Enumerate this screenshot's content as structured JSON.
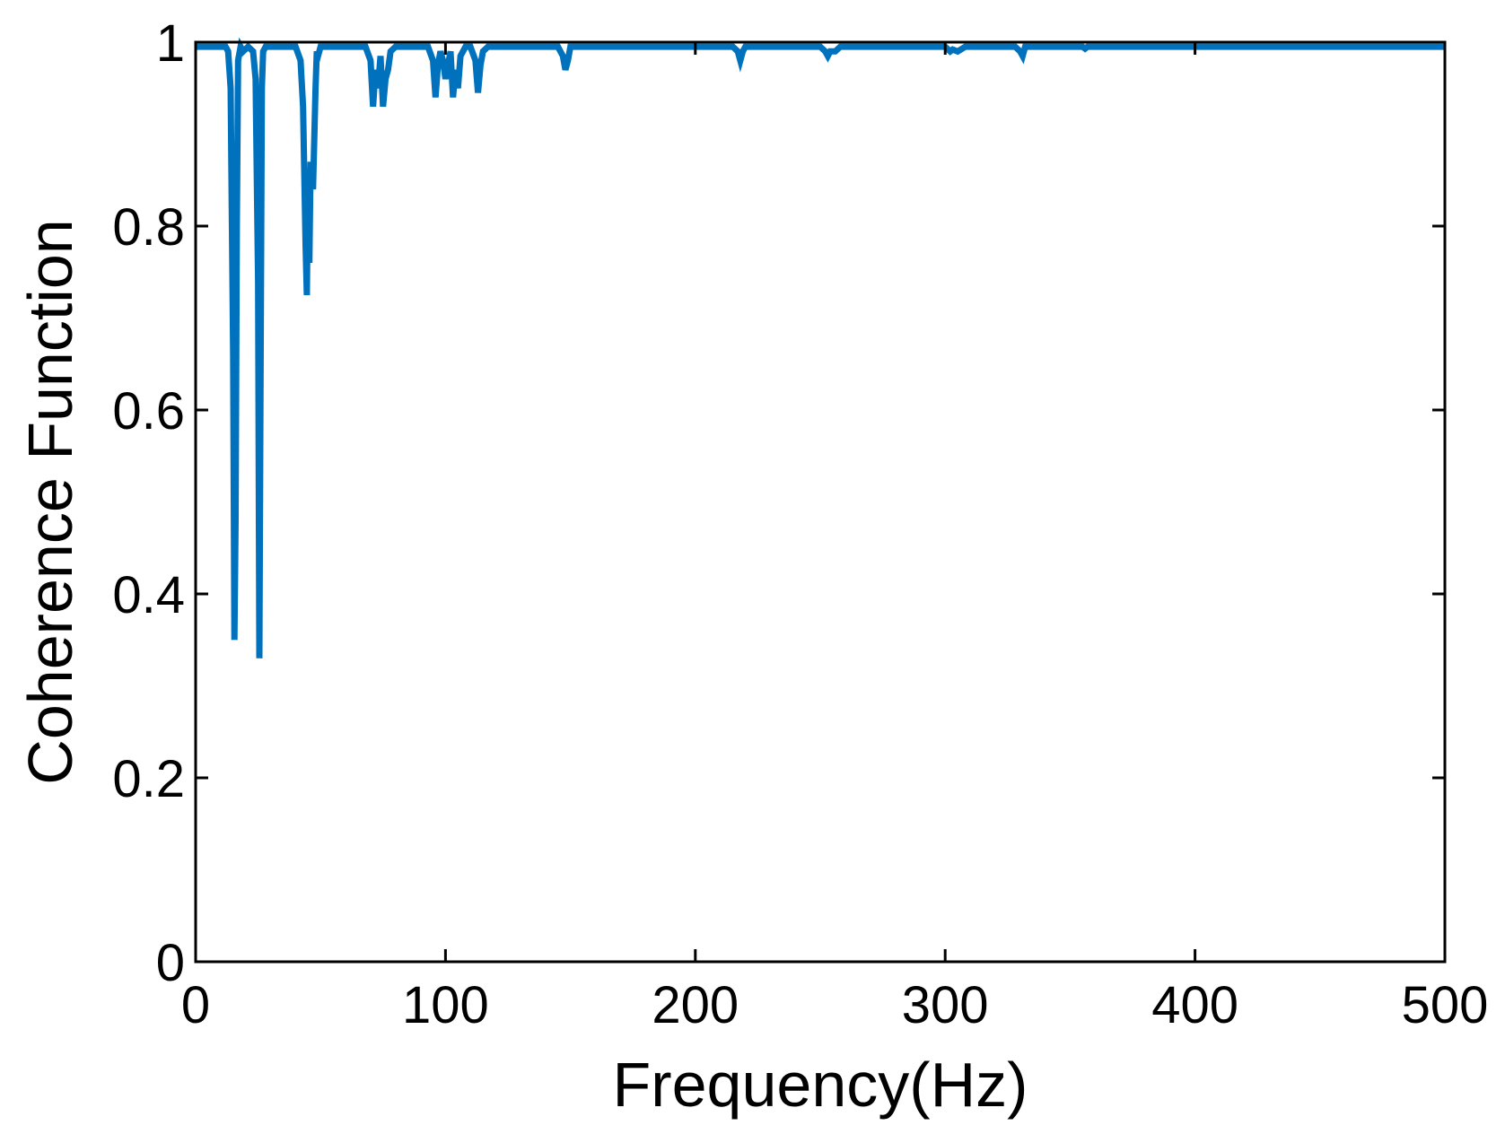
{
  "chart_data": {
    "type": "line",
    "title": "",
    "xlabel": "Frequency(Hz)",
    "ylabel": "Coherence Function",
    "xlim": [
      0,
      500
    ],
    "ylim": [
      0,
      1
    ],
    "xticks": [
      0,
      100,
      200,
      300,
      400,
      500
    ],
    "xtick_labels": [
      "0",
      "100",
      "200",
      "300",
      "400",
      "500"
    ],
    "yticks": [
      0,
      0.2,
      0.4,
      0.6,
      0.8,
      1
    ],
    "ytick_labels": [
      "0",
      "0.2",
      "0.4",
      "0.6",
      "0.8",
      "1"
    ],
    "grid": false,
    "legend": "none",
    "line_color": "#0072BD",
    "series": [
      {
        "x": [
          0,
          12,
          13,
          14,
          15,
          15.5,
          16,
          16.5,
          17,
          18,
          19,
          21,
          23,
          24,
          25,
          25.5,
          26,
          26.5,
          27,
          28,
          30,
          40,
          42,
          43,
          44,
          44.5,
          45,
          45.5,
          46,
          47,
          48,
          48.5,
          49,
          50,
          52,
          68,
          70,
          71,
          72,
          73,
          74,
          75,
          76,
          77,
          78,
          80,
          93,
          95,
          96,
          97,
          98,
          99,
          100,
          101,
          102,
          103,
          104,
          105,
          106,
          108,
          110,
          112,
          113,
          114,
          115,
          117,
          145,
          147,
          148,
          149,
          150,
          152,
          215,
          217,
          218,
          219,
          220,
          222,
          250,
          252,
          253,
          254,
          256,
          258,
          300,
          302,
          303,
          305,
          308,
          310,
          328,
          330,
          331,
          332,
          334,
          355,
          356,
          357,
          500
        ],
        "y": [
          0.995,
          0.995,
          0.99,
          0.95,
          0.66,
          0.35,
          0.48,
          0.8,
          0.98,
          0.995,
          0.99,
          0.995,
          0.99,
          0.96,
          0.74,
          0.33,
          0.65,
          0.95,
          0.99,
          0.995,
          0.995,
          0.995,
          0.98,
          0.93,
          0.78,
          0.725,
          0.85,
          0.76,
          0.87,
          0.84,
          0.95,
          0.99,
          0.985,
          0.995,
          0.995,
          0.995,
          0.98,
          0.93,
          0.97,
          0.95,
          0.985,
          0.93,
          0.96,
          0.97,
          0.99,
          0.995,
          0.995,
          0.98,
          0.94,
          0.975,
          0.99,
          0.98,
          0.96,
          0.975,
          0.99,
          0.94,
          0.97,
          0.95,
          0.985,
          0.995,
          0.995,
          0.98,
          0.945,
          0.975,
          0.99,
          0.995,
          0.995,
          0.985,
          0.97,
          0.98,
          0.995,
          0.995,
          0.995,
          0.99,
          0.98,
          0.99,
          0.995,
          0.995,
          0.995,
          0.99,
          0.985,
          0.99,
          0.99,
          0.995,
          0.995,
          0.99,
          0.992,
          0.99,
          0.995,
          0.995,
          0.995,
          0.99,
          0.985,
          0.995,
          0.995,
          0.995,
          0.993,
          0.995,
          0.995
        ]
      }
    ]
  }
}
